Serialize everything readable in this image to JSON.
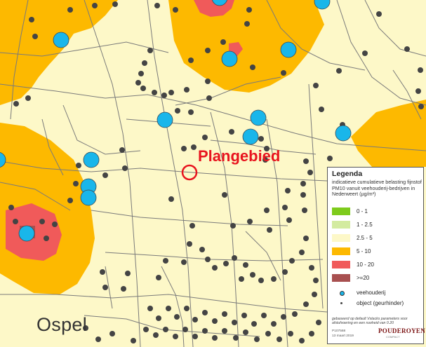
{
  "map": {
    "plan_label": "Plangebied",
    "place_label": "Ospel",
    "colors": {
      "background": "#fdf8c8",
      "zone_5_10": "#fdb900",
      "zone_10_20": "#f05a5a",
      "zone_20_plus": "#a85050",
      "livestock_farm": "#19b6ea",
      "object": "#444444",
      "plan_marker": "#e8141e",
      "roads": "#7a7a7a"
    }
  },
  "legend": {
    "title": "Legenda",
    "description": "indicatieve cumulatieve belasting fijnstof PM10 vanuit veehouderij-bedrijven in Nederweert (µg/m³)",
    "classes": [
      {
        "label": "0 - 1",
        "color": "#7ecb1c"
      },
      {
        "label": "1 - 2.5",
        "color": "#d3eba0"
      },
      {
        "label": "2.5 - 5",
        "color": "#fdf8c8"
      },
      {
        "label": "5 - 10",
        "color": "#fdb900"
      },
      {
        "label": "10 - 20",
        "color": "#f05a5a"
      },
      {
        "label": ">=20",
        "color": "#a85050"
      }
    ],
    "point_symbols": [
      {
        "label": "veehouderij",
        "color": "#19b6ea"
      },
      {
        "label": "object (geurhinder)",
        "color": "#444444"
      }
    ],
    "note": "gebaseerd op default Vstacks parameters voor afstufvoering en een ruwheid van 0.20",
    "code": "P107568",
    "date": "13 maart 2019",
    "company": "POUDEROYEN",
    "company_sub": "COMPACT"
  }
}
